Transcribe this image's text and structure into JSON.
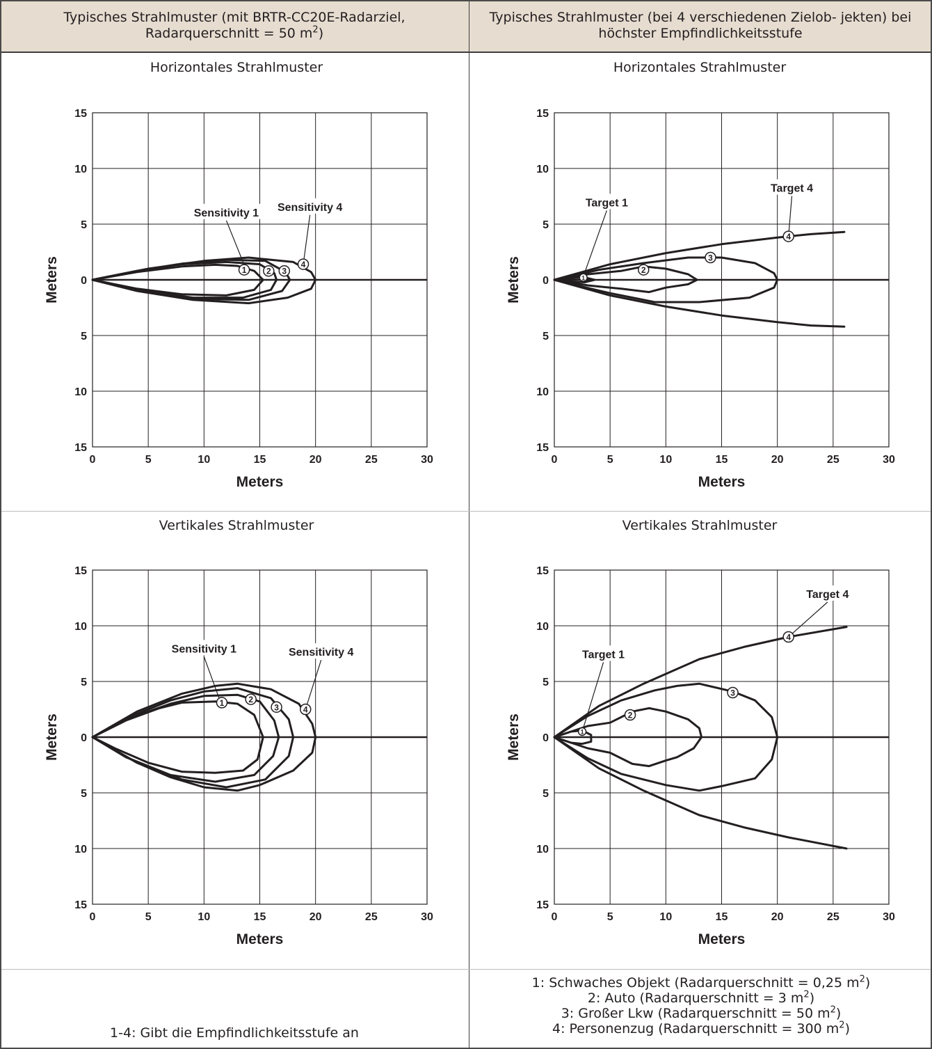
{
  "header": {
    "left_text": "Typisches Strahlmuster (mit BRTR-CC20E-Radarziel, Radarquerschnitt = 50 m",
    "left_sup": "2",
    "left_tail": ")",
    "right_text": "Typisches Strahlmuster (bei 4 verschiedenen Zielob- jekten) bei höchster Empfindlichkeitsstufe"
  },
  "chart_data": [
    {
      "type": "line",
      "title": "Horizontales Strahlmuster",
      "xlabel": "Meters",
      "ylabel": "Meters",
      "xlim": [
        0,
        30
      ],
      "ylim": [
        -15,
        15
      ],
      "xticks": [
        "0",
        "5",
        "10",
        "15",
        "20",
        "25",
        "30"
      ],
      "yticks": [
        "15",
        "10",
        "5",
        "0",
        "5",
        "10",
        "15"
      ],
      "grid": true,
      "annotations": [
        {
          "text": "Sensitivity 1",
          "x": 12,
          "y": 5.7
        },
        {
          "text": "Sensitivity 4",
          "x": 19.5,
          "y": 6.2
        }
      ],
      "markers": [
        "1",
        "2",
        "3",
        "4"
      ],
      "series": [
        {
          "name": "1",
          "points": [
            [
              0,
              0
            ],
            [
              4,
              0.7
            ],
            [
              8,
              1.2
            ],
            [
              11,
              1.35
            ],
            [
              13,
              1.25
            ],
            [
              14.5,
              0.8
            ],
            [
              15.3,
              0
            ],
            [
              14.5,
              -0.9
            ],
            [
              12,
              -1.4
            ],
            [
              8,
              -1.3
            ],
            [
              4,
              -0.8
            ],
            [
              0,
              0
            ]
          ]
        },
        {
          "name": "2",
          "points": [
            [
              0,
              0
            ],
            [
              4,
              0.8
            ],
            [
              8,
              1.4
            ],
            [
              12,
              1.6
            ],
            [
              15,
              1.4
            ],
            [
              16.3,
              0.6
            ],
            [
              16.5,
              0
            ],
            [
              16,
              -0.9
            ],
            [
              13.5,
              -1.6
            ],
            [
              9,
              -1.6
            ],
            [
              4,
              -0.9
            ],
            [
              0,
              0
            ]
          ]
        },
        {
          "name": "3",
          "points": [
            [
              0,
              0
            ],
            [
              4,
              0.8
            ],
            [
              8,
              1.45
            ],
            [
              12,
              1.8
            ],
            [
              15.5,
              1.7
            ],
            [
              17.3,
              0.7
            ],
            [
              17.7,
              0
            ],
            [
              17,
              -1
            ],
            [
              14,
              -1.8
            ],
            [
              9,
              -1.7
            ],
            [
              4,
              -0.9
            ],
            [
              0,
              0
            ]
          ]
        },
        {
          "name": "4",
          "points": [
            [
              0,
              0
            ],
            [
              5,
              1
            ],
            [
              10,
              1.7
            ],
            [
              14,
              2.0
            ],
            [
              18,
              1.6
            ],
            [
              19.6,
              0.7
            ],
            [
              20,
              0
            ],
            [
              19.6,
              -0.8
            ],
            [
              17.5,
              -1.6
            ],
            [
              14,
              -2.1
            ],
            [
              9,
              -1.8
            ],
            [
              4,
              -1
            ],
            [
              0,
              0
            ]
          ]
        }
      ]
    },
    {
      "type": "line",
      "title": "Horizontales Strahlmuster",
      "xlabel": "Meters",
      "ylabel": "Meters",
      "xlim": [
        0,
        30
      ],
      "ylim": [
        -15,
        15
      ],
      "xticks": [
        "0",
        "5",
        "10",
        "15",
        "20",
        "25",
        "30"
      ],
      "yticks": [
        "15",
        "10",
        "5",
        "0",
        "5",
        "10",
        "15"
      ],
      "grid": true,
      "annotations": [
        {
          "text": "Target 1",
          "x": 4.7,
          "y": 6.6
        },
        {
          "text": "Target 4",
          "x": 21.3,
          "y": 7.9
        }
      ],
      "markers": [
        "1",
        "2",
        "3",
        "4"
      ],
      "series": [
        {
          "name": "1",
          "points": [
            [
              0,
              0
            ],
            [
              1.5,
              0.15
            ],
            [
              2.7,
              0.22
            ],
            [
              3.6,
              0
            ],
            [
              2.7,
              -0.22
            ],
            [
              1.5,
              -0.15
            ],
            [
              0,
              0
            ]
          ]
        },
        {
          "name": "2",
          "points": [
            [
              0,
              0
            ],
            [
              3,
              0.5
            ],
            [
              6,
              0.8
            ],
            [
              8,
              1.2
            ],
            [
              10,
              1.0
            ],
            [
              12,
              0.5
            ],
            [
              12.8,
              0
            ],
            [
              12,
              -0.4
            ],
            [
              10,
              -0.7
            ],
            [
              8.5,
              -1.1
            ],
            [
              6,
              -0.8
            ],
            [
              3,
              -0.5
            ],
            [
              0,
              0
            ]
          ]
        },
        {
          "name": "3",
          "points": [
            [
              0,
              0
            ],
            [
              4,
              0.9
            ],
            [
              8,
              1.5
            ],
            [
              12,
              2.0
            ],
            [
              15,
              2.0
            ],
            [
              18,
              1.5
            ],
            [
              19.7,
              0.6
            ],
            [
              20,
              0
            ],
            [
              19.7,
              -0.7
            ],
            [
              17.5,
              -1.6
            ],
            [
              13,
              -2.0
            ],
            [
              9,
              -2.0
            ],
            [
              5,
              -1.2
            ],
            [
              2,
              -0.5
            ],
            [
              0,
              0
            ]
          ]
        },
        {
          "name": "4",
          "points": [
            [
              0,
              0
            ],
            [
              5,
              1.4
            ],
            [
              10,
              2.4
            ],
            [
              15,
              3.2
            ],
            [
              20,
              3.8
            ],
            [
              23,
              4.1
            ],
            [
              26,
              4.3
            ]
          ],
          "closed": false
        },
        {
          "name": "4-lower",
          "points": [
            [
              0,
              0
            ],
            [
              5,
              -1.4
            ],
            [
              10,
              -2.4
            ],
            [
              15,
              -3.2
            ],
            [
              20,
              -3.8
            ],
            [
              23,
              -4.1
            ],
            [
              26,
              -4.2
            ]
          ],
          "closed": false
        }
      ]
    },
    {
      "type": "line",
      "title": "Vertikales Strahlmuster",
      "xlabel": "Meters",
      "ylabel": "Meters",
      "xlim": [
        0,
        30
      ],
      "ylim": [
        -15,
        15
      ],
      "xticks": [
        "0",
        "5",
        "10",
        "15",
        "20",
        "25",
        "30"
      ],
      "yticks": [
        "15",
        "10",
        "5",
        "0",
        "5",
        "10",
        "15"
      ],
      "grid": true,
      "annotations": [
        {
          "text": "Sensitivity 1",
          "x": 10,
          "y": 7.6
        },
        {
          "text": "Sensitivity 4",
          "x": 20.5,
          "y": 7.3
        }
      ],
      "markers": [
        "1",
        "2",
        "3",
        "4"
      ],
      "series": [
        {
          "name": "1",
          "points": [
            [
              0,
              0
            ],
            [
              3,
              1.5
            ],
            [
              6,
              2.6
            ],
            [
              8,
              3.1
            ],
            [
              11,
              3.2
            ],
            [
              13,
              3.0
            ],
            [
              14.5,
              2.0
            ],
            [
              15.3,
              0
            ],
            [
              14.8,
              -2.0
            ],
            [
              13.5,
              -3.0
            ],
            [
              11,
              -3.2
            ],
            [
              8,
              -3.1
            ],
            [
              5,
              -2.3
            ],
            [
              2,
              -1
            ],
            [
              0,
              0
            ]
          ]
        },
        {
          "name": "2",
          "points": [
            [
              0,
              0
            ],
            [
              3,
              1.6
            ],
            [
              7,
              3.0
            ],
            [
              10,
              3.7
            ],
            [
              13,
              3.8
            ],
            [
              15,
              3.2
            ],
            [
              16.3,
              1.5
            ],
            [
              16.7,
              0
            ],
            [
              16.2,
              -1.7
            ],
            [
              14.5,
              -3.4
            ],
            [
              11,
              -4.0
            ],
            [
              7,
              -3.4
            ],
            [
              3,
              -1.8
            ],
            [
              0,
              0
            ]
          ]
        },
        {
          "name": "3",
          "points": [
            [
              0,
              0
            ],
            [
              3,
              1.7
            ],
            [
              7,
              3.3
            ],
            [
              10,
              4.1
            ],
            [
              13,
              4.4
            ],
            [
              16,
              3.5
            ],
            [
              17.6,
              1.6
            ],
            [
              18,
              0
            ],
            [
              17.6,
              -1.7
            ],
            [
              15.5,
              -3.8
            ],
            [
              12,
              -4.5
            ],
            [
              8,
              -3.8
            ],
            [
              4,
              -2.3
            ],
            [
              0,
              0
            ]
          ]
        },
        {
          "name": "4",
          "points": [
            [
              0,
              0
            ],
            [
              4,
              2.3
            ],
            [
              8,
              3.9
            ],
            [
              11,
              4.6
            ],
            [
              13,
              4.8
            ],
            [
              16,
              4.3
            ],
            [
              18.5,
              3.0
            ],
            [
              19.7,
              1.2
            ],
            [
              20,
              0
            ],
            [
              19.7,
              -1.4
            ],
            [
              18,
              -3.0
            ],
            [
              15,
              -4.3
            ],
            [
              13,
              -4.8
            ],
            [
              10,
              -4.5
            ],
            [
              7,
              -3.6
            ],
            [
              4,
              -2.3
            ],
            [
              0,
              0
            ]
          ]
        }
      ]
    },
    {
      "type": "line",
      "title": "Vertikales Strahlmuster",
      "xlabel": "Meters",
      "ylabel": "Meters",
      "xlim": [
        0,
        30
      ],
      "ylim": [
        -15,
        15
      ],
      "xticks": [
        "0",
        "5",
        "10",
        "15",
        "20",
        "25",
        "30"
      ],
      "yticks": [
        "15",
        "10",
        "5",
        "0",
        "5",
        "10",
        "15"
      ],
      "grid": true,
      "annotations": [
        {
          "text": "Target 1",
          "x": 4.4,
          "y": 7.1
        },
        {
          "text": "Target 4",
          "x": 24.5,
          "y": 12.5
        }
      ],
      "markers": [
        "1",
        "2",
        "3",
        "4"
      ],
      "series": [
        {
          "name": "1",
          "points": [
            [
              0,
              0
            ],
            [
              1.5,
              0.5
            ],
            [
              2.5,
              0.6
            ],
            [
              3.3,
              0.2
            ],
            [
              3.3,
              -0.4
            ],
            [
              2.5,
              -0.6
            ],
            [
              1.5,
              -0.5
            ],
            [
              0,
              0
            ]
          ]
        },
        {
          "name": "2",
          "points": [
            [
              0,
              0
            ],
            [
              3,
              1.0
            ],
            [
              5,
              1.3
            ],
            [
              7,
              2.3
            ],
            [
              8.5,
              2.6
            ],
            [
              10,
              2.3
            ],
            [
              12,
              1.6
            ],
            [
              13,
              0.8
            ],
            [
              13.2,
              0
            ],
            [
              12.5,
              -1.0
            ],
            [
              11,
              -1.8
            ],
            [
              10,
              -2.1
            ],
            [
              8.5,
              -2.6
            ],
            [
              7,
              -2.4
            ],
            [
              5,
              -1.4
            ],
            [
              3,
              -1.0
            ],
            [
              0,
              0
            ]
          ]
        },
        {
          "name": "3",
          "points": [
            [
              0,
              0
            ],
            [
              3,
              1.9
            ],
            [
              6,
              3.3
            ],
            [
              9,
              4.2
            ],
            [
              11,
              4.6
            ],
            [
              13,
              4.8
            ],
            [
              16,
              4.1
            ],
            [
              18,
              3.3
            ],
            [
              19.5,
              1.8
            ],
            [
              20,
              0
            ],
            [
              19.5,
              -2.0
            ],
            [
              18,
              -3.7
            ],
            [
              15,
              -4.4
            ],
            [
              13,
              -4.8
            ],
            [
              10,
              -4.3
            ],
            [
              6,
              -3.3
            ],
            [
              3,
              -1.9
            ],
            [
              0,
              0
            ]
          ]
        },
        {
          "name": "4",
          "points": [
            [
              0,
              0
            ],
            [
              4,
              2.8
            ],
            [
              8,
              4.8
            ],
            [
              13,
              7.0
            ],
            [
              17,
              8.1
            ],
            [
              21,
              9.0
            ],
            [
              26.2,
              9.9
            ]
          ],
          "closed": false
        },
        {
          "name": "4-lower",
          "points": [
            [
              0,
              0
            ],
            [
              4,
              -2.8
            ],
            [
              8,
              -4.8
            ],
            [
              13,
              -7.0
            ],
            [
              17,
              -8.1
            ],
            [
              21,
              -9.0
            ],
            [
              26.2,
              -10.0
            ]
          ],
          "closed": false
        }
      ]
    }
  ],
  "footer": {
    "left": "1-4: Gibt die Empfindlichkeitsstufe an",
    "right_lines": [
      {
        "text": "1: Schwaches Objekt (Radarquerschnitt = 0,25 m",
        "sup": "2",
        "tail": ")"
      },
      {
        "text": "2: Auto (Radarquerschnitt = 3 m",
        "sup": "2",
        "tail": ")"
      },
      {
        "text": "3: Großer Lkw (Radarquerschnitt = 50 m",
        "sup": "2",
        "tail": ")"
      },
      {
        "text": "4: Personenzug (Radarquerschnitt = 300 m",
        "sup": "2",
        "tail": ")"
      }
    ]
  }
}
